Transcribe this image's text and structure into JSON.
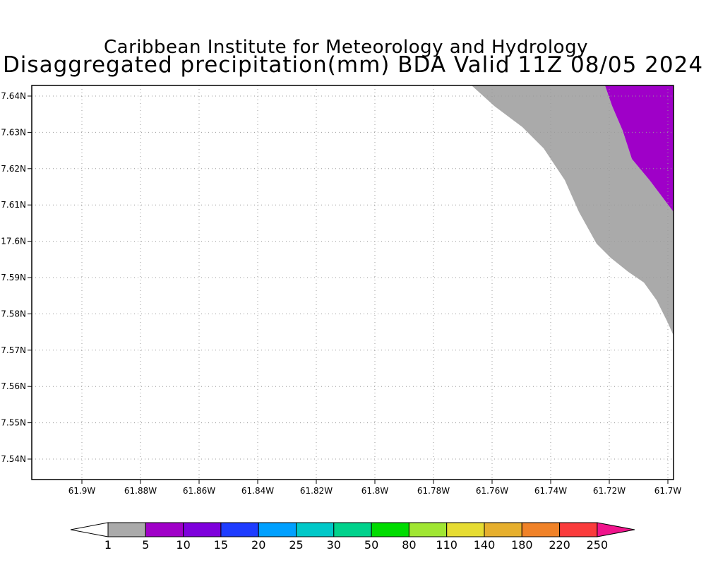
{
  "title_line1": "Caribbean Institute for Meteorology and Hydrology",
  "title_line2": "Disaggregated precipitation(mm) BDA Valid 11Z 08/05 2024",
  "map": {
    "lon_range": [
      -61.913,
      -61.697
    ],
    "lat_range": [
      17.534,
      17.643
    ],
    "lon_ticks": [
      "61.9W",
      "61.88W",
      "61.86W",
      "61.84W",
      "61.82W",
      "61.8W",
      "61.78W",
      "61.76W",
      "61.74W",
      "61.72W",
      "61.7W"
    ],
    "lat_ticks": [
      "7.54N",
      "7.55N",
      "7.56N",
      "7.57N",
      "7.58N",
      "7.59N",
      "17.6N",
      "7.61N",
      "7.62N",
      "7.63N",
      "7.64N"
    ],
    "grid": true,
    "precip_regions": [
      {
        "range_mm": "1-5",
        "color": "#aaaaaa"
      },
      {
        "range_mm": "5-10",
        "color": "#9f00c8"
      }
    ]
  },
  "colorbar": {
    "labels": [
      "1",
      "5",
      "10",
      "15",
      "20",
      "25",
      "30",
      "50",
      "80",
      "110",
      "140",
      "180",
      "220",
      "250"
    ],
    "colors": [
      "#aaaaaa",
      "#a000c8",
      "#7e00dc",
      "#1e3cff",
      "#00a0ff",
      "#00c8c8",
      "#00d28c",
      "#00dc00",
      "#a0e632",
      "#e6dc32",
      "#e6af2d",
      "#f08228",
      "#fa3c3c",
      "#f0148c"
    ]
  }
}
